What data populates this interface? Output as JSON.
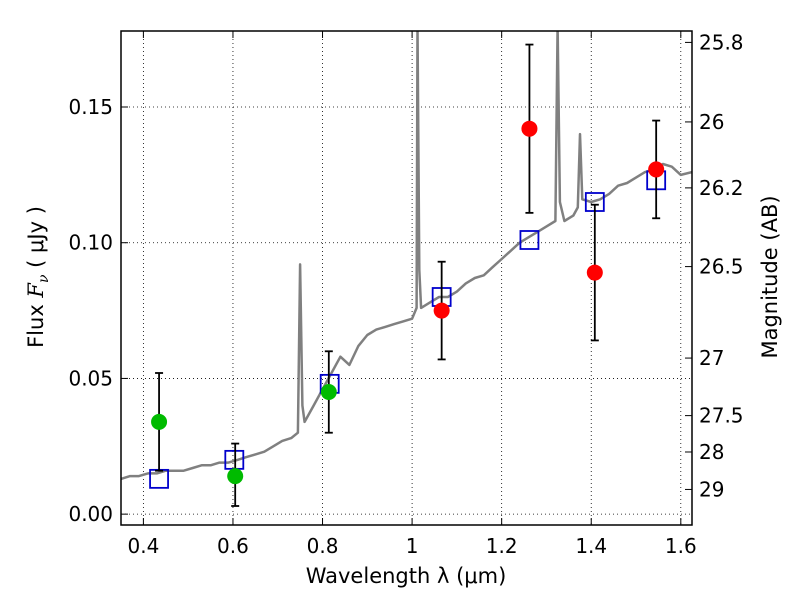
{
  "chart_data": {
    "type": "scatter",
    "xlabel": "Wavelength  λ (μm)",
    "ylabel": {
      "prefix": "Flux  ",
      "var": "F",
      "sub": "ν",
      "unit": "  ( μJy )"
    },
    "ylabel_right": "Magnitude (AB)",
    "xlim": [
      0.35,
      1.625
    ],
    "ylim": [
      -0.004,
      0.178
    ],
    "x_ticks": [
      0.4,
      0.6,
      0.8,
      1.0,
      1.2,
      1.4,
      1.6
    ],
    "x_tick_labels": [
      "0.4",
      "0.6",
      "0.8",
      "1",
      "1.2",
      "1.4",
      "1.6"
    ],
    "y_ticks": [
      0.0,
      0.05,
      0.1,
      0.15
    ],
    "y_tick_labels": [
      "0.00",
      "0.05",
      "0.10",
      "0.15"
    ],
    "right_ticks": [
      {
        "label": "25.8",
        "flux": 0.1738
      },
      {
        "label": "26",
        "flux": 0.1445
      },
      {
        "label": "26.2",
        "flux": 0.1202
      },
      {
        "label": "26.5",
        "flux": 0.0912
      },
      {
        "label": "27",
        "flux": 0.0575
      },
      {
        "label": "27.5",
        "flux": 0.0363
      },
      {
        "label": "28",
        "flux": 0.0229
      },
      {
        "label": "29",
        "flux": 0.0091
      }
    ],
    "grid": true,
    "colors": {
      "spectrum": "#808080",
      "model_box": "#0000cc",
      "obs_green": "#00bb00",
      "obs_red": "#ff0000",
      "errorbar": "#000000"
    },
    "series": [
      {
        "kind": "spectrum",
        "x": [
          0.35,
          0.37,
          0.39,
          0.41,
          0.43,
          0.45,
          0.47,
          0.49,
          0.51,
          0.53,
          0.55,
          0.57,
          0.59,
          0.61,
          0.63,
          0.65,
          0.67,
          0.69,
          0.71,
          0.73,
          0.745,
          0.75,
          0.755,
          0.76,
          0.78,
          0.8,
          0.82,
          0.84,
          0.86,
          0.88,
          0.9,
          0.92,
          0.94,
          0.96,
          0.98,
          1.0,
          1.01,
          1.012,
          1.016,
          1.02,
          1.04,
          1.06,
          1.08,
          1.1,
          1.12,
          1.14,
          1.16,
          1.18,
          1.2,
          1.22,
          1.24,
          1.26,
          1.28,
          1.3,
          1.32,
          1.325,
          1.33,
          1.34,
          1.36,
          1.37,
          1.375,
          1.38,
          1.4,
          1.42,
          1.44,
          1.46,
          1.48,
          1.5,
          1.52,
          1.54,
          1.56,
          1.58,
          1.6,
          1.625
        ],
        "y": [
          0.013,
          0.014,
          0.014,
          0.015,
          0.015,
          0.016,
          0.016,
          0.016,
          0.017,
          0.018,
          0.018,
          0.019,
          0.019,
          0.02,
          0.021,
          0.022,
          0.023,
          0.025,
          0.027,
          0.028,
          0.03,
          0.092,
          0.04,
          0.034,
          0.04,
          0.046,
          0.052,
          0.058,
          0.055,
          0.062,
          0.066,
          0.068,
          0.069,
          0.07,
          0.071,
          0.072,
          0.076,
          0.18,
          0.09,
          0.076,
          0.078,
          0.08,
          0.08,
          0.082,
          0.085,
          0.087,
          0.088,
          0.091,
          0.094,
          0.097,
          0.1,
          0.102,
          0.104,
          0.106,
          0.108,
          0.18,
          0.115,
          0.108,
          0.11,
          0.113,
          0.14,
          0.116,
          0.115,
          0.116,
          0.118,
          0.121,
          0.122,
          0.124,
          0.126,
          0.127,
          0.129,
          0.128,
          0.125,
          0.126
        ]
      },
      {
        "kind": "model_boxes",
        "x": [
          0.435,
          0.603,
          0.816,
          1.066,
          1.262,
          1.408,
          1.545
        ],
        "y": [
          0.013,
          0.02,
          0.048,
          0.08,
          0.101,
          0.115,
          0.123
        ]
      },
      {
        "kind": "observed",
        "x": [
          0.435,
          0.605,
          0.814,
          1.066,
          1.262,
          1.408,
          1.545
        ],
        "y": [
          0.034,
          0.014,
          0.045,
          0.075,
          0.142,
          0.089,
          0.127
        ],
        "yerr_low": [
          0.018,
          0.011,
          0.015,
          0.018,
          0.031,
          0.025,
          0.018
        ],
        "yerr_high": [
          0.018,
          0.012,
          0.015,
          0.018,
          0.031,
          0.025,
          0.018
        ],
        "colors": [
          "green",
          "green",
          "green",
          "red",
          "red",
          "red",
          "red"
        ]
      }
    ]
  }
}
